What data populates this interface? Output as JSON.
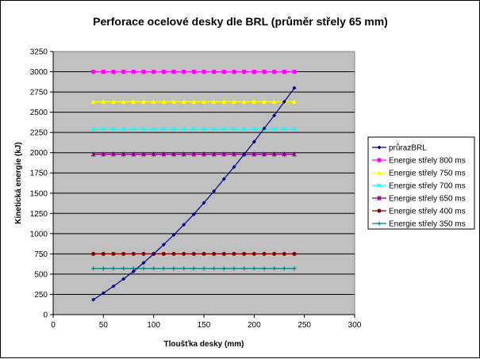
{
  "chart_data": {
    "type": "line",
    "title": "Perforace ocelové desky dle BRL (průměr střely 65 mm)",
    "xlabel": "Tloušťka desky (mm)",
    "ylabel": "Kinetická energie (kJ)",
    "xlim": [
      0,
      300
    ],
    "ylim": [
      0,
      3250
    ],
    "x_ticks": [
      "0",
      "50",
      "100",
      "150",
      "200",
      "250",
      "300"
    ],
    "y_ticks": [
      "0",
      "250",
      "500",
      "750",
      "1000",
      "1250",
      "1500",
      "1750",
      "2000",
      "2250",
      "2500",
      "2750",
      "3000",
      "3250"
    ],
    "grid": "horizontal",
    "plot_background": "#c0c0c0",
    "legend_position": "right",
    "x": [
      40,
      50,
      60,
      70,
      80,
      90,
      100,
      110,
      120,
      130,
      140,
      150,
      160,
      170,
      180,
      190,
      200,
      210,
      220,
      230,
      240
    ],
    "series": [
      {
        "name": "průrazBRL",
        "color": "#000080",
        "marker": "diamond",
        "values": [
          185,
          265,
          350,
          440,
          535,
          640,
          750,
          865,
          985,
          1110,
          1240,
          1380,
          1525,
          1675,
          1825,
          1980,
          2135,
          2300,
          2460,
          2630,
          2800
        ]
      },
      {
        "name": "Energie střely 800 ms",
        "color": "#ff00ff",
        "marker": "square",
        "values": [
          3000,
          3000,
          3000,
          3000,
          3000,
          3000,
          3000,
          3000,
          3000,
          3000,
          3000,
          3000,
          3000,
          3000,
          3000,
          3000,
          3000,
          3000,
          3000,
          3000,
          3000
        ]
      },
      {
        "name": "Energie střely 750 ms",
        "color": "#ffff00",
        "marker": "triangle",
        "values": [
          2630,
          2630,
          2630,
          2630,
          2630,
          2630,
          2630,
          2630,
          2630,
          2630,
          2630,
          2630,
          2630,
          2630,
          2630,
          2630,
          2630,
          2630,
          2630,
          2630,
          2630
        ]
      },
      {
        "name": "Energie střely 700 ms",
        "color": "#00ffff",
        "marker": "x",
        "values": [
          2290,
          2290,
          2290,
          2290,
          2290,
          2290,
          2290,
          2290,
          2290,
          2290,
          2290,
          2290,
          2290,
          2290,
          2290,
          2290,
          2290,
          2290,
          2290,
          2290,
          2290
        ]
      },
      {
        "name": "Energie střely 650 ms",
        "color": "#800080",
        "marker": "star",
        "values": [
          1980,
          1980,
          1980,
          1980,
          1980,
          1980,
          1980,
          1980,
          1980,
          1980,
          1980,
          1980,
          1980,
          1980,
          1980,
          1980,
          1980,
          1980,
          1980,
          1980,
          1980
        ]
      },
      {
        "name": "Energie střely 400 ms",
        "color": "#800000",
        "marker": "circle",
        "values": [
          750,
          750,
          750,
          750,
          750,
          750,
          750,
          750,
          750,
          750,
          750,
          750,
          750,
          750,
          750,
          750,
          750,
          750,
          750,
          750,
          750
        ]
      },
      {
        "name": "Energie střely 350 ms",
        "color": "#008080",
        "marker": "plus",
        "values": [
          570,
          570,
          570,
          570,
          570,
          570,
          570,
          570,
          570,
          570,
          570,
          570,
          570,
          570,
          570,
          570,
          570,
          570,
          570,
          570,
          570
        ]
      }
    ]
  }
}
